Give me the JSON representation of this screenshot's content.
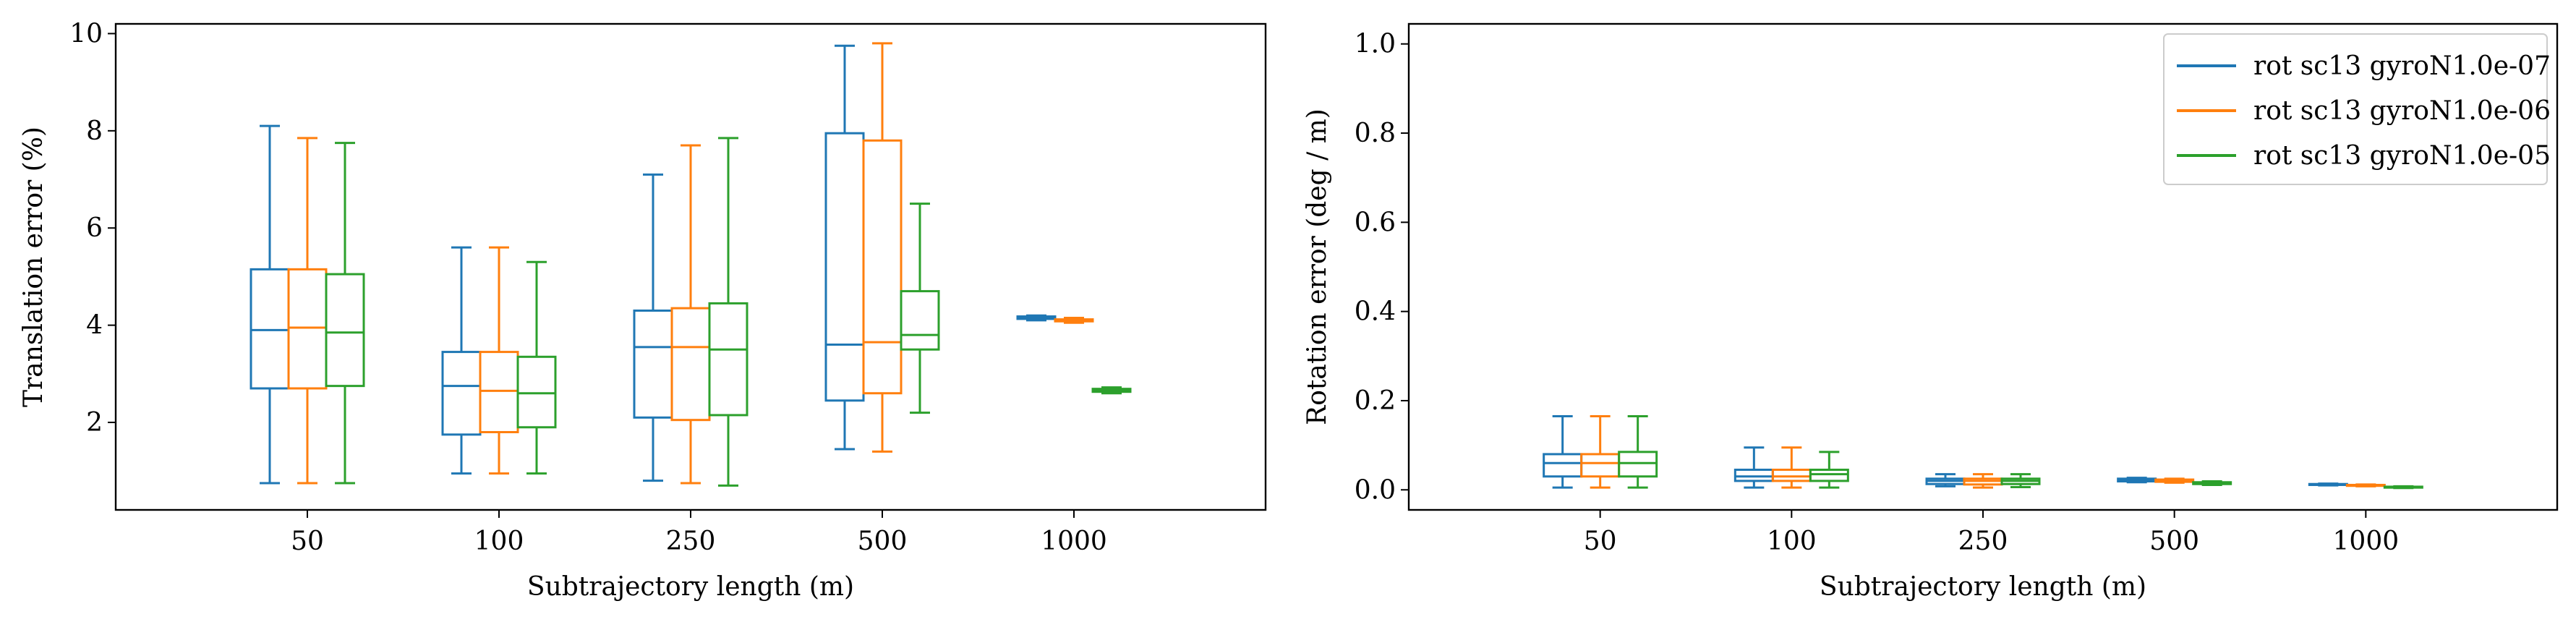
{
  "colors": [
    "#1f77b4",
    "#ff7f0e",
    "#2ca02c"
  ],
  "chart_data": [
    {
      "type": "box",
      "xlabel": "Subtrajectory length (m)",
      "ylabel": "Translation error (%)",
      "categories": [
        "50",
        "100",
        "250",
        "500",
        "1000"
      ],
      "ylim": [
        0.2,
        10.2
      ],
      "yticks": [
        "2",
        "4",
        "6",
        "8",
        "10"
      ],
      "series": [
        {
          "boxes": [
            {
              "whislo": 0.75,
              "q1": 2.7,
              "med": 3.9,
              "q3": 5.15,
              "whishi": 8.1
            },
            {
              "whislo": 0.95,
              "q1": 1.75,
              "med": 2.75,
              "q3": 3.45,
              "whishi": 5.6
            },
            {
              "whislo": 0.8,
              "q1": 2.1,
              "med": 3.55,
              "q3": 4.3,
              "whishi": 7.1
            },
            {
              "whislo": 1.45,
              "q1": 2.45,
              "med": 3.6,
              "q3": 7.95,
              "whishi": 9.75
            },
            {
              "whislo": 4.1,
              "q1": 4.13,
              "med": 4.15,
              "q3": 4.18,
              "whishi": 4.2
            }
          ]
        },
        {
          "boxes": [
            {
              "whislo": 0.75,
              "q1": 2.7,
              "med": 3.95,
              "q3": 5.15,
              "whishi": 7.85
            },
            {
              "whislo": 0.95,
              "q1": 1.8,
              "med": 2.65,
              "q3": 3.45,
              "whishi": 5.6
            },
            {
              "whislo": 0.75,
              "q1": 2.05,
              "med": 3.55,
              "q3": 4.35,
              "whishi": 7.7
            },
            {
              "whislo": 1.4,
              "q1": 2.6,
              "med": 3.65,
              "q3": 7.8,
              "whishi": 9.8
            },
            {
              "whislo": 4.05,
              "q1": 4.08,
              "med": 4.1,
              "q3": 4.12,
              "whishi": 4.15
            }
          ]
        },
        {
          "boxes": [
            {
              "whislo": 0.75,
              "q1": 2.75,
              "med": 3.85,
              "q3": 5.05,
              "whishi": 7.75
            },
            {
              "whislo": 0.95,
              "q1": 1.9,
              "med": 2.6,
              "q3": 3.35,
              "whishi": 5.3
            },
            {
              "whislo": 0.7,
              "q1": 2.15,
              "med": 3.5,
              "q3": 4.45,
              "whishi": 7.85
            },
            {
              "whislo": 2.2,
              "q1": 3.5,
              "med": 3.8,
              "q3": 4.7,
              "whishi": 6.5
            },
            {
              "whislo": 2.6,
              "q1": 2.63,
              "med": 2.66,
              "q3": 2.69,
              "whishi": 2.72
            }
          ]
        }
      ]
    },
    {
      "type": "box",
      "xlabel": "Subtrajectory length (m)",
      "ylabel": "Rotation error (deg / m)",
      "categories": [
        "50",
        "100",
        "250",
        "500",
        "1000"
      ],
      "ylim": [
        -0.045,
        1.045
      ],
      "yticks": [
        "0.0",
        "0.2",
        "0.4",
        "0.6",
        "0.8",
        "1.0"
      ],
      "legend_position": "top-right",
      "series": [
        {
          "name": "rot sc13 gyroN1.0e-07",
          "boxes": [
            {
              "whislo": 0.005,
              "q1": 0.03,
              "med": 0.06,
              "q3": 0.08,
              "whishi": 0.165
            },
            {
              "whislo": 0.005,
              "q1": 0.02,
              "med": 0.03,
              "q3": 0.045,
              "whishi": 0.095
            },
            {
              "whislo": 0.008,
              "q1": 0.013,
              "med": 0.02,
              "q3": 0.025,
              "whishi": 0.035
            },
            {
              "whislo": 0.017,
              "q1": 0.019,
              "med": 0.022,
              "q3": 0.025,
              "whishi": 0.027
            },
            {
              "whislo": 0.01,
              "q1": 0.011,
              "med": 0.012,
              "q3": 0.013,
              "whishi": 0.014
            }
          ]
        },
        {
          "name": "rot sc13 gyroN1.0e-06",
          "boxes": [
            {
              "whislo": 0.005,
              "q1": 0.03,
              "med": 0.06,
              "q3": 0.08,
              "whishi": 0.165
            },
            {
              "whislo": 0.005,
              "q1": 0.02,
              "med": 0.03,
              "q3": 0.045,
              "whishi": 0.095
            },
            {
              "whislo": 0.005,
              "q1": 0.012,
              "med": 0.02,
              "q3": 0.025,
              "whishi": 0.035
            },
            {
              "whislo": 0.016,
              "q1": 0.018,
              "med": 0.021,
              "q3": 0.023,
              "whishi": 0.025
            },
            {
              "whislo": 0.008,
              "q1": 0.009,
              "med": 0.01,
              "q3": 0.011,
              "whishi": 0.012
            }
          ]
        },
        {
          "name": "rot sc13 gyroN1.0e-05",
          "boxes": [
            {
              "whislo": 0.005,
              "q1": 0.03,
              "med": 0.06,
              "q3": 0.085,
              "whishi": 0.165
            },
            {
              "whislo": 0.005,
              "q1": 0.02,
              "med": 0.035,
              "q3": 0.045,
              "whishi": 0.085
            },
            {
              "whislo": 0.006,
              "q1": 0.013,
              "med": 0.02,
              "q3": 0.025,
              "whishi": 0.035
            },
            {
              "whislo": 0.011,
              "q1": 0.013,
              "med": 0.015,
              "q3": 0.017,
              "whishi": 0.019
            },
            {
              "whislo": 0.004,
              "q1": 0.005,
              "med": 0.006,
              "q3": 0.007,
              "whishi": 0.008
            }
          ]
        }
      ]
    }
  ]
}
